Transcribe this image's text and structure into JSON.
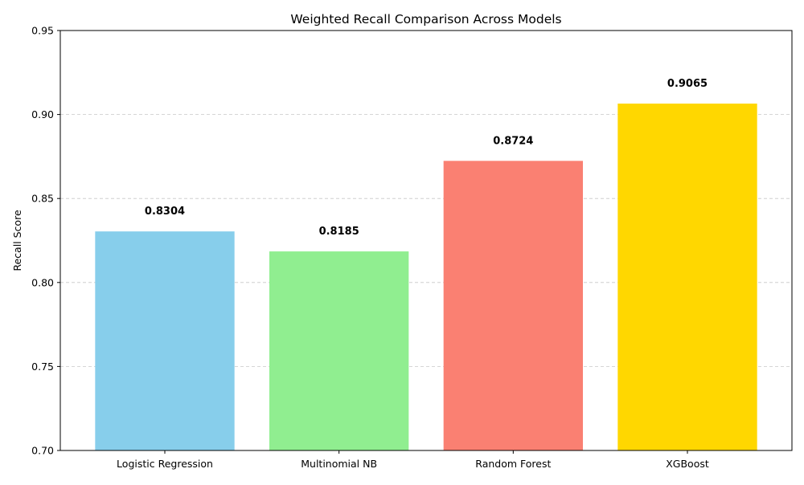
{
  "chart_data": {
    "type": "bar",
    "title": "Weighted Recall Comparison Across Models",
    "xlabel": "",
    "ylabel": "Recall Score",
    "categories": [
      "Logistic Regression",
      "Multinomial NB",
      "Random Forest",
      "XGBoost"
    ],
    "values": [
      0.8304,
      0.8185,
      0.8724,
      0.9065
    ],
    "value_labels": [
      "0.8304",
      "0.8185",
      "0.8724",
      "0.9065"
    ],
    "colors": [
      "#87ceeb",
      "#90ee90",
      "#fa8072",
      "#ffd700"
    ],
    "ylim": [
      0.7,
      0.95
    ],
    "yticks": [
      0.7,
      0.75,
      0.8,
      0.85,
      0.9,
      0.95
    ],
    "ytick_labels": [
      "0.70",
      "0.75",
      "0.80",
      "0.85",
      "0.90",
      "0.95"
    ],
    "grid": {
      "axis": "y",
      "style": "dashed",
      "color": "#c8c8c8"
    },
    "legend": "none"
  }
}
